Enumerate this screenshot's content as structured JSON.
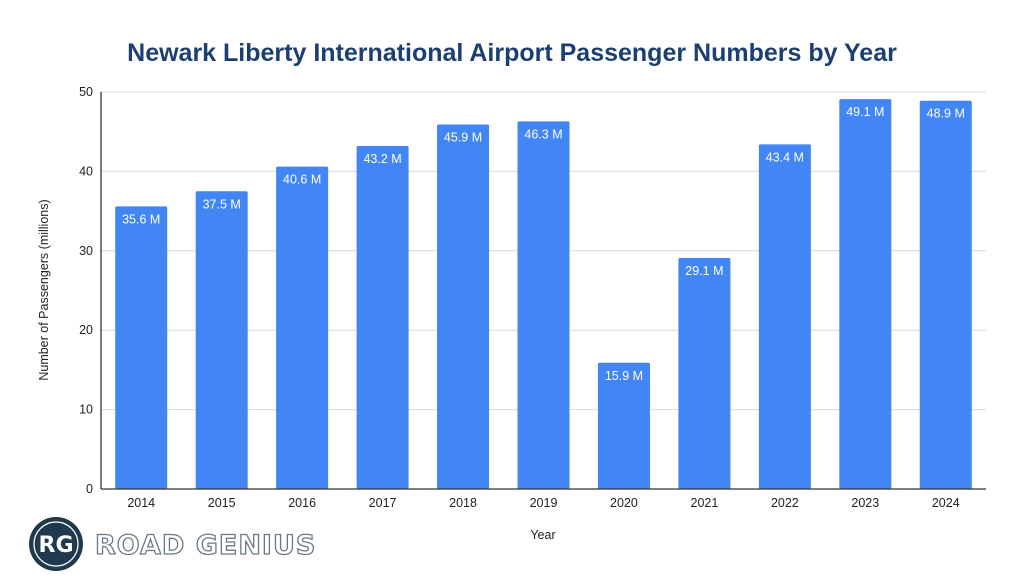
{
  "chart_data": {
    "type": "bar",
    "title": "Newark Liberty International Airport Passenger Numbers by Year",
    "xlabel": "Year",
    "ylabel": "Number of Passengers (millions)",
    "ylim": [
      0,
      50
    ],
    "yticks": [
      0,
      10,
      20,
      30,
      40,
      50
    ],
    "grid": true,
    "categories": [
      "2014",
      "2015",
      "2016",
      "2017",
      "2018",
      "2019",
      "2020",
      "2021",
      "2022",
      "2023",
      "2024"
    ],
    "values": [
      35.6,
      37.5,
      40.6,
      43.2,
      45.9,
      46.3,
      15.9,
      29.1,
      43.4,
      49.1,
      48.9
    ],
    "data_labels": [
      "35.6 M",
      "37.5 M",
      "40.6 M",
      "43.2 M",
      "45.9 M",
      "46.3 M",
      "15.9 M",
      "29.1 M",
      "43.4 M",
      "49.1 M",
      "48.9 M"
    ],
    "bar_color": "#4285f4",
    "title_color": "#1c3f73"
  },
  "logo": {
    "monogram": "RG",
    "name": "ROAD GENIUS",
    "circle_color": "#1e3a4c"
  }
}
